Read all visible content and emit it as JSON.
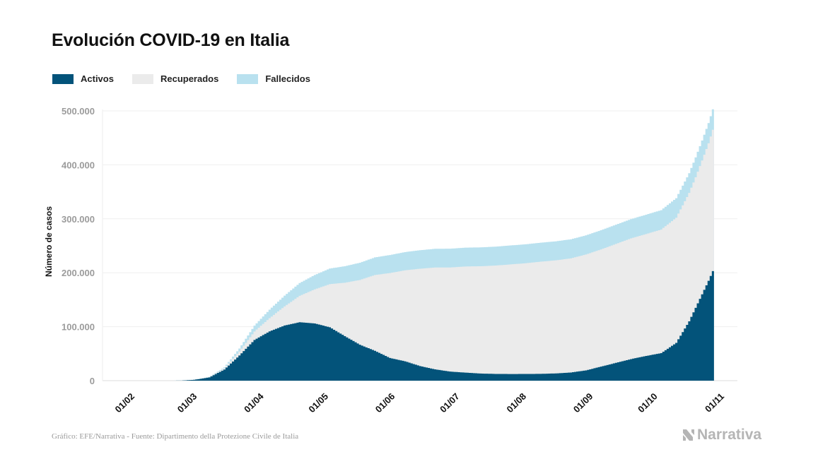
{
  "title": "Evolución COVID-19 en Italia",
  "legend": [
    {
      "label": "Activos",
      "color": "#03537a"
    },
    {
      "label": "Recuperados",
      "color": "#ebebeb"
    },
    {
      "label": "Fallecidos",
      "color": "#b9e1ef"
    }
  ],
  "footer": "Gráfico: EFE/Narrativa - Fuente: Dipartimento della Protezione Civile de Italia",
  "logo": "Narrativa",
  "chart_data": {
    "type": "area",
    "stacked": true,
    "title": "Evolución COVID-19 en Italia",
    "xlabel": "",
    "ylabel": "Número de casos",
    "ylim": [
      0,
      500000
    ],
    "y_ticks": [
      0,
      100000,
      200000,
      300000,
      400000,
      500000
    ],
    "y_tick_labels": [
      "0",
      "100.000",
      "200.000",
      "300.000",
      "400.000",
      "500.000"
    ],
    "x_tick_labels": [
      "01/02",
      "01/03",
      "01/04",
      "01/05",
      "01/06",
      "01/07",
      "01/08",
      "01/09",
      "01/10",
      "01/11"
    ],
    "grid": true,
    "legend_position": "top-left",
    "series": [
      {
        "name": "Activos",
        "color": "#03537a",
        "x": [
          "2020-02-24",
          "2020-03-01",
          "2020-03-08",
          "2020-03-15",
          "2020-03-22",
          "2020-03-29",
          "2020-04-05",
          "2020-04-12",
          "2020-04-19",
          "2020-04-26",
          "2020-05-03",
          "2020-05-10",
          "2020-05-17",
          "2020-05-24",
          "2020-05-31",
          "2020-06-07",
          "2020-06-14",
          "2020-06-21",
          "2020-06-28",
          "2020-07-05",
          "2020-07-12",
          "2020-07-19",
          "2020-07-26",
          "2020-08-02",
          "2020-08-09",
          "2020-08-16",
          "2020-08-23",
          "2020-08-30",
          "2020-09-06",
          "2020-09-13",
          "2020-09-20",
          "2020-09-27",
          "2020-10-04",
          "2020-10-11",
          "2020-10-14",
          "2020-10-17",
          "2020-10-20",
          "2020-10-23",
          "2020-10-26",
          "2020-10-28"
        ],
        "values": [
          200,
          1600,
          6000,
          20600,
          46600,
          75500,
          91300,
          102200,
          108300,
          106100,
          99000,
          82500,
          66600,
          55300,
          42000,
          35900,
          27000,
          20900,
          16800,
          14900,
          13200,
          12500,
          12300,
          12400,
          12600,
          13400,
          15100,
          19000,
          26000,
          33000,
          40000,
          45800,
          51000,
          70000,
          90000,
          110000,
          135000,
          160000,
          185000,
          203000
        ]
      },
      {
        "name": "Recuperados",
        "color": "#ebebeb",
        "x": [
          "2020-02-24",
          "2020-03-01",
          "2020-03-08",
          "2020-03-15",
          "2020-03-22",
          "2020-03-29",
          "2020-04-05",
          "2020-04-12",
          "2020-04-19",
          "2020-04-26",
          "2020-05-03",
          "2020-05-10",
          "2020-05-17",
          "2020-05-24",
          "2020-05-31",
          "2020-06-07",
          "2020-06-14",
          "2020-06-21",
          "2020-06-28",
          "2020-07-05",
          "2020-07-12",
          "2020-07-19",
          "2020-07-26",
          "2020-08-02",
          "2020-08-09",
          "2020-08-16",
          "2020-08-23",
          "2020-08-30",
          "2020-09-06",
          "2020-09-13",
          "2020-09-20",
          "2020-09-27",
          "2020-10-04",
          "2020-10-11",
          "2020-10-14",
          "2020-10-17",
          "2020-10-20",
          "2020-10-23",
          "2020-10-26",
          "2020-10-28"
        ],
        "values": [
          0,
          100,
          600,
          2300,
          7400,
          15700,
          24400,
          35400,
          48900,
          63100,
          79900,
          99000,
          120000,
          140500,
          157500,
          168600,
          180500,
          188900,
          193000,
          196700,
          198900,
          200800,
          203200,
          205200,
          207900,
          209600,
          211500,
          214800,
          217200,
          220500,
          223700,
          226000,
          229000,
          232000,
          235000,
          238000,
          242000,
          248000,
          255000,
          262000
        ]
      },
      {
        "name": "Fallecidos",
        "color": "#b9e1ef",
        "x": [
          "2020-02-24",
          "2020-03-01",
          "2020-03-08",
          "2020-03-15",
          "2020-03-22",
          "2020-03-29",
          "2020-04-05",
          "2020-04-12",
          "2020-04-19",
          "2020-04-26",
          "2020-05-03",
          "2020-05-10",
          "2020-05-17",
          "2020-05-24",
          "2020-05-31",
          "2020-06-07",
          "2020-06-14",
          "2020-06-21",
          "2020-06-28",
          "2020-07-05",
          "2020-07-12",
          "2020-07-19",
          "2020-07-26",
          "2020-08-02",
          "2020-08-09",
          "2020-08-16",
          "2020-08-23",
          "2020-08-30",
          "2020-09-06",
          "2020-09-13",
          "2020-09-20",
          "2020-09-27",
          "2020-10-04",
          "2020-10-11",
          "2020-10-14",
          "2020-10-17",
          "2020-10-20",
          "2020-10-23",
          "2020-10-26",
          "2020-10-28"
        ],
        "values": [
          7,
          34,
          366,
          1800,
          5500,
          10800,
          15900,
          19900,
          23700,
          26600,
          28900,
          30600,
          32000,
          32700,
          33400,
          33800,
          34300,
          34600,
          34800,
          34900,
          34950,
          35050,
          35100,
          35150,
          35200,
          35250,
          35400,
          35480,
          35550,
          35600,
          35700,
          35850,
          36000,
          36250,
          36400,
          36550,
          36700,
          37100,
          37500,
          38000
        ]
      }
    ]
  }
}
